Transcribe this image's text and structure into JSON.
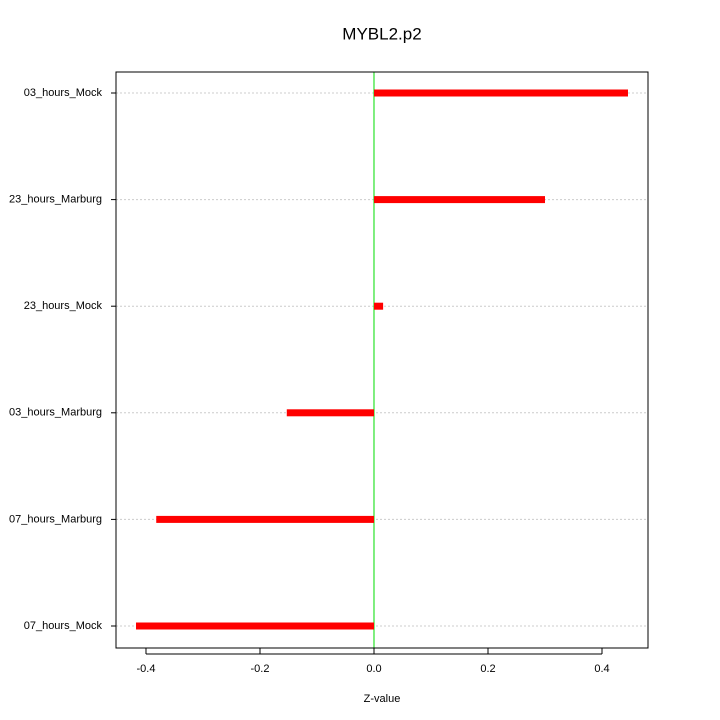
{
  "chart_data": {
    "type": "bar",
    "orientation": "horizontal",
    "title": "MYBL2.p2",
    "x_label": "Z-value",
    "categories": [
      "03_hours_Mock",
      "23_hours_Marburg",
      "23_hours_Mock",
      "03_hours_Marburg",
      "07_hours_Marburg",
      "07_hours_Mock"
    ],
    "values": [
      0.4456,
      0.3,
      0.016,
      -0.153,
      -0.382,
      -0.4175
    ],
    "color": "#ff0000",
    "zero_line_color": "#00dd00",
    "xlim": [
      -0.4526,
      0.4807
    ],
    "xticks": [
      -0.4,
      -0.2,
      {
        "value": 0,
        "label": "0.0"
      },
      0.2,
      0.4
    ],
    "grid": true
  }
}
